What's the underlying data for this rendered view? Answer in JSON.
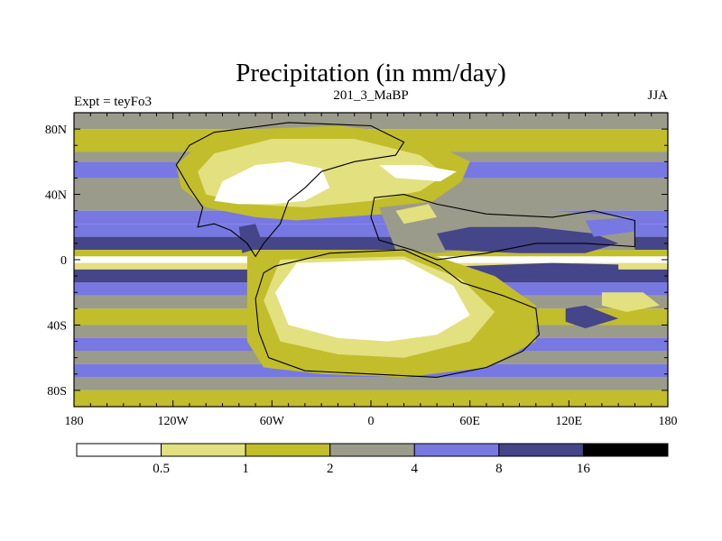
{
  "chart_data": {
    "type": "heatmap",
    "title": "Precipitation (in mm/day)",
    "left_string": "Expt = teyFo3",
    "center_string": "201_3_MaBP",
    "right_string": "JJA",
    "units": "mm/day",
    "x_range": [
      -180,
      180
    ],
    "y_range": [
      -90,
      90
    ],
    "x_ticks": [
      {
        "value": -180,
        "label": "180"
      },
      {
        "value": -120,
        "label": "120W"
      },
      {
        "value": -60,
        "label": "60W"
      },
      {
        "value": 0,
        "label": "0"
      },
      {
        "value": 60,
        "label": "60E"
      },
      {
        "value": 120,
        "label": "120E"
      },
      {
        "value": 180,
        "label": "180"
      }
    ],
    "y_ticks": [
      {
        "value": 80,
        "label": "80N"
      },
      {
        "value": 40,
        "label": "40N"
      },
      {
        "value": 0,
        "label": "0"
      },
      {
        "value": -40,
        "label": "40S"
      },
      {
        "value": -80,
        "label": "80S"
      }
    ],
    "levels": [
      {
        "value": 0.5,
        "label": "0.5"
      },
      {
        "value": 1,
        "label": "1"
      },
      {
        "value": 2,
        "label": "2"
      },
      {
        "value": 4,
        "label": "4"
      },
      {
        "value": 8,
        "label": "8"
      },
      {
        "value": 16,
        "label": "16"
      }
    ],
    "colors": [
      "#ffffff",
      "#e3e07f",
      "#c2bd2b",
      "#9b9b8b",
      "#7878e3",
      "#45458a",
      "#000000"
    ],
    "zonal_bands": [
      {
        "lat": [
          80,
          90
        ],
        "class": 3
      },
      {
        "lat": [
          66,
          80
        ],
        "class": 2
      },
      {
        "lat": [
          60,
          66
        ],
        "class": 3
      },
      {
        "lat": [
          50,
          60
        ],
        "class": 4
      },
      {
        "lat": [
          30,
          50
        ],
        "class": 3
      },
      {
        "lat": [
          22,
          30
        ],
        "class": 4
      },
      {
        "lat": [
          14,
          22
        ],
        "class": 4
      },
      {
        "lat": [
          6,
          14
        ],
        "class": 5
      },
      {
        "lat": [
          2,
          6
        ],
        "class": 2
      },
      {
        "lat": [
          -2,
          2
        ],
        "class": 0
      },
      {
        "lat": [
          -6,
          -2
        ],
        "class": 1
      },
      {
        "lat": [
          -14,
          -6
        ],
        "class": 5
      },
      {
        "lat": [
          -22,
          -14
        ],
        "class": 4
      },
      {
        "lat": [
          -30,
          -22
        ],
        "class": 3
      },
      {
        "lat": [
          -40,
          -30
        ],
        "class": 2
      },
      {
        "lat": [
          -48,
          -40
        ],
        "class": 3
      },
      {
        "lat": [
          -56,
          -48
        ],
        "class": 4
      },
      {
        "lat": [
          -64,
          -56
        ],
        "class": 3
      },
      {
        "lat": [
          -72,
          -64
        ],
        "class": 4
      },
      {
        "lat": [
          -80,
          -72
        ],
        "class": 3
      },
      {
        "lat": [
          -90,
          -80
        ],
        "class": 2
      }
    ],
    "regions": [
      {
        "name": "north-landmass",
        "class": 2,
        "points": [
          [
            -100,
            74
          ],
          [
            -70,
            80
          ],
          [
            -20,
            82
          ],
          [
            15,
            78
          ],
          [
            40,
            70
          ],
          [
            60,
            60
          ],
          [
            55,
            48
          ],
          [
            35,
            34
          ],
          [
            10,
            28
          ],
          [
            -20,
            26
          ],
          [
            -45,
            24
          ],
          [
            -70,
            26
          ],
          [
            -100,
            32
          ],
          [
            -115,
            44
          ],
          [
            -118,
            58
          ]
        ]
      },
      {
        "name": "north-dry-core",
        "class": 1,
        "points": [
          [
            -95,
            65
          ],
          [
            -60,
            74
          ],
          [
            -10,
            74
          ],
          [
            30,
            64
          ],
          [
            45,
            52
          ],
          [
            30,
            42
          ],
          [
            0,
            36
          ],
          [
            -40,
            32
          ],
          [
            -75,
            34
          ],
          [
            -100,
            40
          ],
          [
            -105,
            54
          ]
        ]
      },
      {
        "name": "north-desert-white",
        "class": 0,
        "points": [
          [
            -95,
            36
          ],
          [
            -90,
            48
          ],
          [
            -70,
            58
          ],
          [
            -50,
            60
          ],
          [
            -30,
            56
          ],
          [
            -25,
            44
          ],
          [
            -40,
            36
          ],
          [
            -60,
            34
          ],
          [
            -80,
            34
          ]
        ]
      },
      {
        "name": "north-desert-white-east",
        "class": 0,
        "points": [
          [
            5,
            58
          ],
          [
            30,
            58
          ],
          [
            52,
            54
          ],
          [
            42,
            48
          ],
          [
            15,
            50
          ]
        ]
      },
      {
        "name": "east-landmass",
        "class": 3,
        "points": [
          [
            5,
            32
          ],
          [
            60,
            38
          ],
          [
            110,
            30
          ],
          [
            160,
            26
          ],
          [
            160,
            6
          ],
          [
            130,
            6
          ],
          [
            110,
            10
          ],
          [
            70,
            8
          ],
          [
            40,
            4
          ],
          [
            15,
            6
          ]
        ]
      },
      {
        "name": "east-wet-band",
        "class": 5,
        "points": [
          [
            40,
            16
          ],
          [
            60,
            20
          ],
          [
            100,
            20
          ],
          [
            135,
            16
          ],
          [
            150,
            10
          ],
          [
            130,
            4
          ],
          [
            90,
            4
          ],
          [
            45,
            6
          ]
        ]
      },
      {
        "name": "east-dry-patch",
        "class": 1,
        "points": [
          [
            15,
            30
          ],
          [
            35,
            34
          ],
          [
            40,
            26
          ],
          [
            20,
            22
          ]
        ]
      },
      {
        "name": "west-wet-patch",
        "class": 5,
        "points": [
          [
            -80,
            20
          ],
          [
            -70,
            22
          ],
          [
            -65,
            8
          ],
          [
            -78,
            4
          ]
        ]
      },
      {
        "name": "equatorial-dark-strip",
        "class": 5,
        "points": [
          [
            55,
            -4
          ],
          [
            110,
            -2
          ],
          [
            150,
            -3
          ],
          [
            150,
            -8
          ],
          [
            100,
            -10
          ],
          [
            55,
            -10
          ]
        ]
      },
      {
        "name": "south-landmass",
        "class": 2,
        "points": [
          [
            -75,
            2
          ],
          [
            -40,
            6
          ],
          [
            0,
            6
          ],
          [
            40,
            2
          ],
          [
            75,
            -10
          ],
          [
            100,
            -28
          ],
          [
            100,
            -50
          ],
          [
            70,
            -66
          ],
          [
            20,
            -72
          ],
          [
            -30,
            -70
          ],
          [
            -65,
            -66
          ],
          [
            -75,
            -50
          ],
          [
            -75,
            -20
          ]
        ]
      },
      {
        "name": "south-dry-core",
        "class": 1,
        "points": [
          [
            -55,
            0
          ],
          [
            20,
            2
          ],
          [
            55,
            -12
          ],
          [
            75,
            -32
          ],
          [
            60,
            -50
          ],
          [
            20,
            -60
          ],
          [
            -20,
            -58
          ],
          [
            -55,
            -50
          ],
          [
            -65,
            -25
          ]
        ]
      },
      {
        "name": "south-desert-white",
        "class": 0,
        "points": [
          [
            -45,
            -2
          ],
          [
            20,
            0
          ],
          [
            50,
            -16
          ],
          [
            60,
            -34
          ],
          [
            40,
            -46
          ],
          [
            10,
            -50
          ],
          [
            -20,
            -48
          ],
          [
            -50,
            -40
          ],
          [
            -58,
            -20
          ]
        ]
      },
      {
        "name": "south-east-wet-patch",
        "class": 5,
        "points": [
          [
            118,
            -30
          ],
          [
            130,
            -28
          ],
          [
            150,
            -36
          ],
          [
            130,
            -42
          ],
          [
            118,
            -38
          ]
        ]
      },
      {
        "name": "far-east-dry-patch",
        "class": 1,
        "points": [
          [
            140,
            -20
          ],
          [
            165,
            -20
          ],
          [
            175,
            -28
          ],
          [
            155,
            -32
          ],
          [
            140,
            -28
          ]
        ]
      },
      {
        "name": "north-east-wet-patch",
        "class": 4,
        "points": [
          [
            130,
            24
          ],
          [
            160,
            26
          ],
          [
            165,
            18
          ],
          [
            135,
            14
          ]
        ]
      }
    ],
    "land_outlines": [
      {
        "name": "north-continent-outline",
        "points": [
          [
            -95,
            78
          ],
          [
            -50,
            84
          ],
          [
            0,
            82
          ],
          [
            20,
            72
          ],
          [
            15,
            64
          ],
          [
            -10,
            60
          ],
          [
            -30,
            54
          ],
          [
            -40,
            44
          ],
          [
            -50,
            36
          ],
          [
            -55,
            22
          ],
          [
            -65,
            10
          ],
          [
            -70,
            2
          ],
          [
            -75,
            10
          ],
          [
            -85,
            18
          ],
          [
            -95,
            22
          ],
          [
            -105,
            20
          ],
          [
            -102,
            32
          ],
          [
            -110,
            44
          ],
          [
            -118,
            58
          ],
          [
            -110,
            70
          ]
        ]
      },
      {
        "name": "east-continent-outline",
        "points": [
          [
            2,
            38
          ],
          [
            20,
            40
          ],
          [
            40,
            34
          ],
          [
            70,
            28
          ],
          [
            110,
            26
          ],
          [
            135,
            30
          ],
          [
            160,
            24
          ],
          [
            160,
            8
          ],
          [
            130,
            10
          ],
          [
            100,
            10
          ],
          [
            70,
            4
          ],
          [
            40,
            0
          ],
          [
            25,
            6
          ],
          [
            5,
            12
          ],
          [
            0,
            26
          ]
        ]
      },
      {
        "name": "south-continent-outline",
        "points": [
          [
            -58,
            -4
          ],
          [
            -25,
            4
          ],
          [
            20,
            6
          ],
          [
            42,
            -4
          ],
          [
            55,
            -14
          ],
          [
            80,
            -22
          ],
          [
            100,
            -30
          ],
          [
            102,
            -46
          ],
          [
            92,
            -56
          ],
          [
            70,
            -66
          ],
          [
            40,
            -72
          ],
          [
            0,
            -70
          ],
          [
            -40,
            -68
          ],
          [
            -62,
            -60
          ],
          [
            -68,
            -44
          ],
          [
            -70,
            -24
          ],
          [
            -65,
            -8
          ]
        ]
      }
    ]
  }
}
